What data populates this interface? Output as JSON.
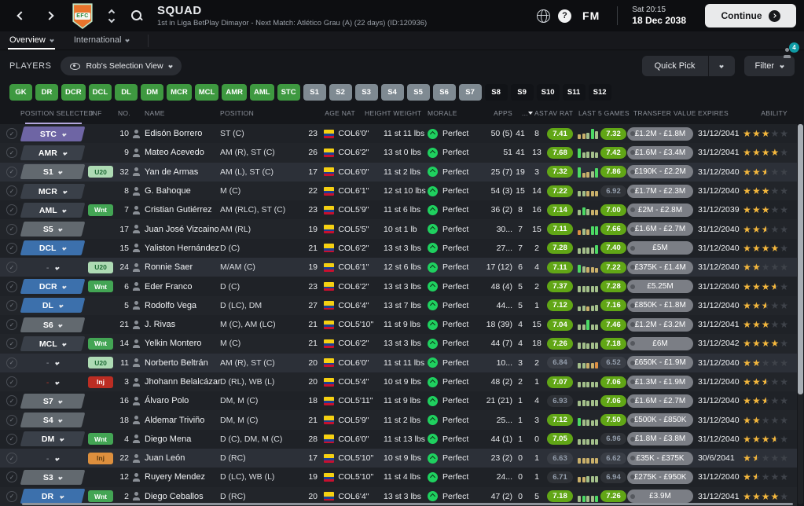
{
  "header": {
    "title": "SQUAD",
    "subtitle": "1st in Liga BetPlay Dimayor - Next Match: Atlético Grau (A) (22 days) (ID:120936)",
    "crest_text": "EFC",
    "clock_day": "Sat 20:15",
    "clock_date": "18 Dec 2038",
    "fm_logo": "FM",
    "continue_label": "Continue",
    "notification_count": "4"
  },
  "tabs": [
    {
      "label": "Overview",
      "active": true
    },
    {
      "label": "International",
      "active": false
    }
  ],
  "toolbar": {
    "players_label": "PLAYERS",
    "view_selector": "Rob's Selection View",
    "quick_pick_label": "Quick Pick",
    "filter_label": "Filter"
  },
  "position_filters": {
    "green": [
      "GK",
      "DR",
      "DCR",
      "DCL",
      "DL",
      "DM",
      "MCR",
      "MCL",
      "AMR",
      "AML",
      "STC"
    ],
    "gray": [
      "S1",
      "S2",
      "S3",
      "S4",
      "S5",
      "S6",
      "S7"
    ],
    "dark": [
      "S8",
      "S9",
      "S10",
      "S11",
      "S12"
    ]
  },
  "table": {
    "header": {
      "pos_selected": "POSITION SELECTED",
      "inf": "INF",
      "no": "NO.",
      "name": "NAME",
      "position": "POSITION",
      "age_nat": "AGE NAT",
      "height_weight": "HEIGHT WEIGHT",
      "morale": "MORALE",
      "apps": "APPS",
      "gls": "...",
      "ast": "AST",
      "av_rat": "AV RAT",
      "last5": "LAST 5 GAMES",
      "value": "TRANSFER VALUE",
      "expires": "EXPIRES",
      "ability": "ABILITY"
    },
    "rows": [
      {
        "pos": "STC",
        "style": "purple",
        "inf": null,
        "no": "10",
        "name": "Edisón Borrero",
        "position": "ST (C)",
        "age": "23",
        "nat": "COL",
        "height": "6'0\"",
        "weight": "11 st 11 lbs",
        "morale": "Perfect",
        "apps": "50 (5)",
        "gls": "41",
        "ast": "8",
        "rat": "7.41",
        "ratg": true,
        "bars": [
          [
            0.45,
            "k"
          ],
          [
            0.5,
            "k"
          ],
          [
            0.55,
            "s"
          ],
          [
            0.95,
            "b"
          ],
          [
            0.7,
            "s"
          ]
        ],
        "l5": "7.32",
        "l5g": true,
        "value": "£1.2M - £1.8M",
        "expires": "31/12/2041",
        "ability": 3
      },
      {
        "pos": "AMR",
        "style": "dark",
        "inf": null,
        "no": "9",
        "name": "Mateo Acevedo",
        "position": "AM (R), ST (C)",
        "age": "26",
        "nat": "COL",
        "height": "6'2\"",
        "weight": "13 st 0 lbs",
        "morale": "Perfect",
        "apps": "51",
        "gls": "41",
        "ast": "13",
        "rat": "7.68",
        "ratg": true,
        "bars": [
          [
            0.85,
            "b"
          ],
          [
            0.5,
            "s"
          ],
          [
            0.6,
            "s"
          ],
          [
            0.55,
            "s"
          ],
          [
            0.5,
            "s"
          ]
        ],
        "l5": "7.42",
        "l5g": true,
        "value": "£1.6M - £3.4M",
        "expires": "31/12/2041",
        "ability": 4
      },
      {
        "pos": "S1",
        "style": "gray",
        "inf": {
          "label": "U20",
          "kind": "u20"
        },
        "no": "32",
        "name": "Yan de Armas",
        "position": "AM (L), ST (C)",
        "age": "17",
        "nat": "COL",
        "height": "6'0\"",
        "weight": "11 st 2 lbs",
        "morale": "Perfect",
        "apps": "25 (7)",
        "gls": "19",
        "ast": "3",
        "rat": "7.32",
        "ratg": true,
        "bars": [
          [
            0.9,
            "b"
          ],
          [
            0.4,
            "k"
          ],
          [
            0.5,
            "k"
          ],
          [
            0.55,
            "s"
          ],
          [
            0.85,
            "b"
          ]
        ],
        "l5": "7.86",
        "l5g": true,
        "value": "£190K - £2.2M",
        "expires": "31/12/2040",
        "ability": 2.5
      },
      {
        "pos": "MCR",
        "style": "dark",
        "inf": null,
        "no": "8",
        "name": "G. Bahoque",
        "position": "M (C)",
        "age": "22",
        "nat": "COL",
        "height": "6'1\"",
        "weight": "12 st 10 lbs",
        "morale": "Perfect",
        "apps": "54 (3)",
        "gls": "15",
        "ast": "14",
        "rat": "7.22",
        "ratg": true,
        "bars": [
          [
            0.5,
            "s"
          ],
          [
            0.5,
            "s"
          ],
          [
            0.5,
            "k"
          ],
          [
            0.5,
            "k"
          ],
          [
            0.5,
            "k"
          ]
        ],
        "l5": "6.92",
        "l5g": false,
        "value": "£1.7M - £2.3M",
        "expires": "31/12/2040",
        "ability": 3
      },
      {
        "pos": "AML",
        "style": "dark",
        "inf": {
          "label": "Wnt",
          "kind": "wnt"
        },
        "no": "7",
        "name": "Cristian Gutiérrez",
        "position": "AM (RLC), ST (C)",
        "age": "23",
        "nat": "COL",
        "height": "5'9\"",
        "weight": "11 st 6 lbs",
        "morale": "Perfect",
        "apps": "36 (2)",
        "gls": "8",
        "ast": "16",
        "rat": "7.14",
        "ratg": true,
        "bars": [
          [
            0.5,
            "s"
          ],
          [
            0.7,
            "b"
          ],
          [
            0.6,
            "s"
          ],
          [
            0.5,
            "k"
          ],
          [
            0.5,
            "k"
          ]
        ],
        "l5": "7.00",
        "l5g": true,
        "value": "£2M - £2.8M",
        "expires": "31/12/2039",
        "ability": 3
      },
      {
        "pos": "S5",
        "style": "gray",
        "inf": null,
        "no": "17",
        "name": "Juan José Vizcaino",
        "position": "AM (RL)",
        "age": "19",
        "nat": "COL",
        "height": "5'5\"",
        "weight": "10 st 1 lb",
        "morale": "Perfect",
        "apps": "30...",
        "gls": "7",
        "ast": "15",
        "rat": "7.11",
        "ratg": true,
        "bars": [
          [
            0.4,
            "o"
          ],
          [
            0.55,
            "s"
          ],
          [
            0.5,
            "k"
          ],
          [
            0.75,
            "b"
          ],
          [
            0.75,
            "b"
          ]
        ],
        "l5": "7.66",
        "l5g": true,
        "value": "£1.6M - £2.7M",
        "expires": "31/12/2040",
        "ability": 2.5
      },
      {
        "pos": "DCL",
        "style": "blue",
        "inf": null,
        "no": "15",
        "name": "Yaliston Hernández",
        "position": "D (C)",
        "age": "21",
        "nat": "COL",
        "height": "6'2\"",
        "weight": "13 st 3 lbs",
        "morale": "Perfect",
        "apps": "27...",
        "gls": "7",
        "ast": "2",
        "rat": "7.28",
        "ratg": true,
        "bars": [
          [
            0.5,
            "s"
          ],
          [
            0.55,
            "s"
          ],
          [
            0.55,
            "s"
          ],
          [
            0.6,
            "s"
          ],
          [
            0.8,
            "b"
          ]
        ],
        "l5": "7.40",
        "l5g": true,
        "value": "£5M",
        "expires": "31/12/2040",
        "ability": 4
      },
      {
        "pos": "-",
        "style": "none",
        "inf": {
          "label": "U20",
          "kind": "u20"
        },
        "no": "24",
        "name": "Ronnie Saer",
        "position": "M/AM (C)",
        "age": "19",
        "nat": "COL",
        "height": "6'1\"",
        "weight": "12 st 6 lbs",
        "morale": "Perfect",
        "apps": "17 (12)",
        "gls": "6",
        "ast": "4",
        "rat": "7.11",
        "ratg": true,
        "bars": [
          [
            0.7,
            "b"
          ],
          [
            0.6,
            "s"
          ],
          [
            0.5,
            "k"
          ],
          [
            0.5,
            "k"
          ],
          [
            0.45,
            "k"
          ]
        ],
        "l5": "7.22",
        "l5g": true,
        "value": "£375K - £1.4M",
        "expires": "31/12/2040",
        "ability": 2
      },
      {
        "pos": "DCR",
        "style": "blue",
        "inf": {
          "label": "Wnt",
          "kind": "wnt"
        },
        "no": "6",
        "name": "Eder Franco",
        "position": "D (C)",
        "age": "23",
        "nat": "COL",
        "height": "6'2\"",
        "weight": "13 st 3 lbs",
        "morale": "Perfect",
        "apps": "48 (4)",
        "gls": "5",
        "ast": "2",
        "rat": "7.37",
        "ratg": true,
        "bars": [
          [
            0.55,
            "s"
          ],
          [
            0.55,
            "s"
          ],
          [
            0.6,
            "s"
          ],
          [
            0.6,
            "s"
          ],
          [
            0.6,
            "s"
          ]
        ],
        "l5": "7.28",
        "l5g": true,
        "value": "£5.25M",
        "expires": "31/12/2040",
        "ability": 3.5
      },
      {
        "pos": "DL",
        "style": "blue",
        "inf": null,
        "no": "5",
        "name": "Rodolfo Vega",
        "position": "D (LC), DM",
        "age": "27",
        "nat": "COL",
        "height": "6'4\"",
        "weight": "13 st 7 lbs",
        "morale": "Perfect",
        "apps": "44...",
        "gls": "5",
        "ast": "1",
        "rat": "7.12",
        "ratg": true,
        "bars": [
          [
            0.4,
            "s"
          ],
          [
            0.5,
            "s"
          ],
          [
            0.45,
            "k"
          ],
          [
            0.5,
            "s"
          ],
          [
            0.6,
            "s"
          ]
        ],
        "l5": "7.16",
        "l5g": true,
        "value": "£850K - £1.8M",
        "expires": "31/12/2040",
        "ability": 2.5
      },
      {
        "pos": "S6",
        "style": "gray",
        "inf": null,
        "no": "21",
        "name": "J. Rivas",
        "position": "M (C), AM (LC)",
        "age": "21",
        "nat": "COL",
        "height": "5'10\"",
        "weight": "11 st 9 lbs",
        "morale": "Perfect",
        "apps": "18 (39)",
        "gls": "4",
        "ast": "15",
        "rat": "7.04",
        "ratg": true,
        "bars": [
          [
            0.5,
            "s"
          ],
          [
            0.5,
            "s"
          ],
          [
            0.9,
            "b"
          ],
          [
            0.5,
            "s"
          ],
          [
            0.5,
            "s"
          ]
        ],
        "l5": "7.46",
        "l5g": true,
        "value": "£1.2M - £3.2M",
        "expires": "31/12/2041",
        "ability": 3
      },
      {
        "pos": "MCL",
        "style": "dark",
        "inf": {
          "label": "Wnt",
          "kind": "wnt"
        },
        "no": "14",
        "name": "Yelkin Montero",
        "position": "M (C)",
        "age": "21",
        "nat": "COL",
        "height": "6'2\"",
        "weight": "13 st 3 lbs",
        "morale": "Perfect",
        "apps": "44 (7)",
        "gls": "4",
        "ast": "18",
        "rat": "7.26",
        "ratg": true,
        "bars": [
          [
            0.6,
            "s"
          ],
          [
            0.6,
            "s"
          ],
          [
            0.5,
            "s"
          ],
          [
            0.6,
            "s"
          ],
          [
            0.6,
            "s"
          ]
        ],
        "l5": "7.18",
        "l5g": true,
        "value": "£6M",
        "expires": "31/12/2042",
        "ability": 4
      },
      {
        "pos": "-",
        "style": "none",
        "inf": {
          "label": "U20",
          "kind": "u20"
        },
        "no": "11",
        "name": "Norberto Beltrán",
        "position": "AM (R), ST (C)",
        "age": "20",
        "nat": "COL",
        "height": "6'0\"",
        "weight": "11 st 11 lbs",
        "morale": "Perfect",
        "apps": "10...",
        "gls": "3",
        "ast": "2",
        "rat": "6.84",
        "ratg": false,
        "bars": [
          [
            0.5,
            "s"
          ],
          [
            0.5,
            "s"
          ],
          [
            0.5,
            "k"
          ],
          [
            0.5,
            "k"
          ],
          [
            0.55,
            "o"
          ]
        ],
        "l5": "6.52",
        "l5g": false,
        "value": "£650K - £1.9M",
        "expires": "31/12/2040",
        "ability": 2
      },
      {
        "pos": "-",
        "style": "none",
        "red": true,
        "inf": {
          "label": "Inj",
          "kind": "injr"
        },
        "no": "3",
        "name": "Jhohann Belalcázar",
        "position": "D (RL), WB (L)",
        "age": "20",
        "nat": "COL",
        "height": "5'4\"",
        "weight": "10 st 9 lbs",
        "morale": "Perfect",
        "apps": "48 (2)",
        "gls": "2",
        "ast": "1",
        "rat": "7.07",
        "ratg": true,
        "bars": [
          [
            0.5,
            "s"
          ],
          [
            0.5,
            "s"
          ],
          [
            0.5,
            "s"
          ],
          [
            0.5,
            "s"
          ],
          [
            0.5,
            "s"
          ]
        ],
        "l5": "7.06",
        "l5g": true,
        "value": "£1.3M - £1.9M",
        "expires": "31/12/2040",
        "ability": 2.5
      },
      {
        "pos": "S7",
        "style": "gray",
        "inf": null,
        "no": "16",
        "name": "Álvaro Polo",
        "position": "DM, M (C)",
        "age": "18",
        "nat": "COL",
        "height": "5'11\"",
        "weight": "11 st 9 lbs",
        "morale": "Perfect",
        "apps": "21 (21)",
        "gls": "1",
        "ast": "4",
        "rat": "6.93",
        "ratg": false,
        "bars": [
          [
            0.5,
            "s"
          ],
          [
            0.6,
            "s"
          ],
          [
            0.5,
            "s"
          ],
          [
            0.6,
            "s"
          ],
          [
            0.6,
            "s"
          ]
        ],
        "l5": "7.06",
        "l5g": true,
        "value": "£1.6M - £2.7M",
        "expires": "31/12/2040",
        "ability": 2.5
      },
      {
        "pos": "S4",
        "style": "gray",
        "inf": null,
        "no": "18",
        "name": "Aldemar Triviño",
        "position": "DM, M (C)",
        "age": "21",
        "nat": "COL",
        "height": "5'9\"",
        "weight": "11 st 2 lbs",
        "morale": "Perfect",
        "apps": "25...",
        "gls": "1",
        "ast": "3",
        "rat": "7.12",
        "ratg": true,
        "bars": [
          [
            0.7,
            "b"
          ],
          [
            0.6,
            "s"
          ],
          [
            0.6,
            "s"
          ],
          [
            0.5,
            "s"
          ],
          [
            0.6,
            "s"
          ]
        ],
        "l5": "7.50",
        "l5g": true,
        "value": "£500K - £850K",
        "expires": "31/12/2040",
        "ability": 2
      },
      {
        "pos": "DM",
        "style": "dark",
        "inf": {
          "label": "Wnt",
          "kind": "wnt"
        },
        "no": "4",
        "name": "Diego Mena",
        "position": "D (C), DM, M (C)",
        "age": "28",
        "nat": "COL",
        "height": "6'0\"",
        "weight": "11 st 13 lbs",
        "morale": "Perfect",
        "apps": "44 (1)",
        "gls": "1",
        "ast": "0",
        "rat": "7.05",
        "ratg": true,
        "bars": [
          [
            0.5,
            "s"
          ],
          [
            0.5,
            "s"
          ],
          [
            0.5,
            "s"
          ],
          [
            0.5,
            "s"
          ],
          [
            0.5,
            "s"
          ]
        ],
        "l5": "6.96",
        "l5g": false,
        "value": "£1.8M - £3.8M",
        "expires": "31/12/2040",
        "ability": 3.5
      },
      {
        "pos": "-",
        "style": "none",
        "inf": {
          "label": "Inj",
          "kind": "injo"
        },
        "no": "22",
        "name": "Juan León",
        "position": "D (RC)",
        "age": "17",
        "nat": "COL",
        "height": "5'10\"",
        "weight": "10 st 9 lbs",
        "morale": "Perfect",
        "apps": "23 (2)",
        "gls": "0",
        "ast": "1",
        "rat": "6.63",
        "ratg": false,
        "bars": [
          [
            0.5,
            "k"
          ],
          [
            0.5,
            "k"
          ],
          [
            0.5,
            "k"
          ],
          [
            0.5,
            "k"
          ],
          [
            0.5,
            "k"
          ]
        ],
        "l5": "6.62",
        "l5g": false,
        "value": "£35K - £375K",
        "expires": "30/6/2041",
        "ability": 1.5
      },
      {
        "pos": "S3",
        "style": "gray",
        "inf": null,
        "no": "12",
        "name": "Ruyery Mendez",
        "position": "D (LC), WB (L)",
        "age": "19",
        "nat": "COL",
        "height": "5'10\"",
        "weight": "11 st 4 lbs",
        "morale": "Perfect",
        "apps": "24...",
        "gls": "0",
        "ast": "1",
        "rat": "6.71",
        "ratg": false,
        "bars": [
          [
            0.5,
            "k"
          ],
          [
            0.5,
            "k"
          ],
          [
            0.6,
            "s"
          ],
          [
            0.6,
            "s"
          ],
          [
            0.6,
            "s"
          ]
        ],
        "l5": "6.94",
        "l5g": false,
        "value": "£275K - £950K",
        "expires": "31/12/2040",
        "ability": 1.5
      },
      {
        "pos": "DR",
        "style": "blue",
        "inf": {
          "label": "Wnt",
          "kind": "wnt"
        },
        "no": "2",
        "name": "Diego Ceballos",
        "position": "D (RC)",
        "age": "20",
        "nat": "COL",
        "height": "6'4\"",
        "weight": "13 st 3 lbs",
        "morale": "Perfect",
        "apps": "47 (2)",
        "gls": "0",
        "ast": "5",
        "rat": "7.18",
        "ratg": true,
        "bars": [
          [
            0.6,
            "s"
          ],
          [
            0.6,
            "b"
          ],
          [
            0.6,
            "s"
          ],
          [
            0.6,
            "s"
          ],
          [
            0.6,
            "b"
          ]
        ],
        "l5": "7.26",
        "l5g": true,
        "value": "£3.9M",
        "expires": "31/12/2041",
        "ability": 4
      }
    ]
  },
  "colors": {
    "rating_good_bg": "#61a616",
    "rating_neutral_text": "#939dab",
    "pill_purple": "#6e65a4",
    "pill_blue": "#3c70ac",
    "pill_gray": "#62696f",
    "pill_dark": "#3a4049",
    "badge_u20_bg": "#aedbb4",
    "badge_wnt_bg": "#43a554",
    "badge_inj_red_bg": "#bb2d23",
    "badge_inj_orange_bg": "#dd8f3d",
    "star_gold": "#f5b83d",
    "morale_green": "#1fd05f",
    "notification_teal": "#0f9ba5",
    "filter_green": "#3e9940",
    "bar_bright": "#4cd964",
    "bar_sage": "#a3bf8a",
    "bar_khaki": "#c9b06a",
    "bar_orange": "#dd9043"
  }
}
